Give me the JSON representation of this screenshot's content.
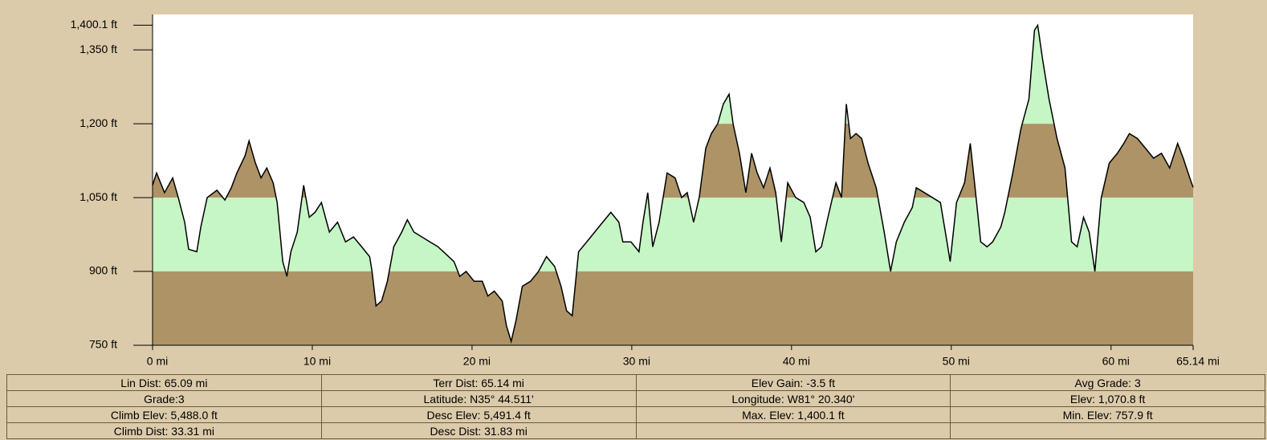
{
  "chart_data": {
    "type": "area",
    "x": [
      0,
      0.25,
      0.75,
      1.26,
      1.61,
      2.01,
      2.26,
      2.77,
      3.02,
      3.42,
      4.03,
      4.53,
      4.93,
      5.28,
      5.79,
      6.04,
      6.44,
      6.79,
      7.15,
      7.55,
      7.8,
      8.15,
      8.41,
      8.66,
      9.06,
      9.46,
      9.81,
      10.17,
      10.57,
      11.07,
      11.58,
      12.08,
      12.58,
      13.09,
      13.59,
      13.74,
      13.99,
      14.34,
      14.7,
      15.1,
      15.6,
      15.95,
      16.36,
      16.86,
      17.36,
      17.87,
      18.37,
      18.87,
      19.23,
      19.63,
      20.13,
      20.64,
      20.99,
      21.39,
      21.89,
      22.15,
      22.45,
      22.75,
      23.15,
      23.66,
      24.16,
      24.66,
      25.17,
      25.57,
      25.92,
      26.27,
      26.67,
      27.18,
      27.68,
      28.18,
      28.69,
      29.19,
      29.44,
      29.95,
      30.45,
      30.7,
      31.0,
      31.31,
      31.71,
      32.21,
      32.71,
      33.12,
      33.47,
      33.87,
      34.22,
      34.63,
      34.98,
      35.38,
      35.73,
      36.09,
      36.34,
      36.74,
      37.14,
      37.5,
      37.85,
      38.25,
      38.65,
      39.01,
      39.36,
      39.76,
      40.26,
      40.77,
      41.17,
      41.52,
      41.87,
      42.28,
      42.78,
      43.13,
      43.43,
      43.69,
      44.04,
      44.39,
      44.79,
      45.3,
      45.8,
      46.2,
      46.56,
      47.06,
      47.56,
      47.81,
      48.32,
      48.82,
      49.32,
      49.73,
      49.93,
      50.33,
      50.83,
      51.19,
      51.49,
      51.84,
      52.24,
      52.59,
      53.1,
      53.35,
      53.85,
      54.36,
      54.86,
      55.21,
      55.41,
      55.72,
      56.12,
      56.62,
      57.12,
      57.53,
      57.88,
      58.28,
      58.63,
      58.99,
      59.39,
      59.89,
      60.4,
      60.8,
      61.15,
      61.65,
      62.16,
      62.66,
      63.16,
      63.67,
      64.17,
      64.52,
      64.93,
      65.14
    ],
    "values": [
      1075,
      1100,
      1060,
      1090,
      1050,
      1000,
      945,
      940,
      990,
      1050,
      1065,
      1045,
      1070,
      1100,
      1135,
      1165,
      1120,
      1090,
      1110,
      1080,
      1040,
      920,
      890,
      940,
      980,
      1075,
      1010,
      1020,
      1040,
      980,
      1000,
      960,
      970,
      950,
      930,
      900,
      830,
      840,
      880,
      950,
      980,
      1005,
      980,
      970,
      960,
      950,
      935,
      920,
      890,
      900,
      880,
      880,
      850,
      860,
      840,
      790,
      757.9,
      800,
      870,
      880,
      900,
      930,
      910,
      870,
      820,
      810,
      940,
      960,
      980,
      1000,
      1020,
      1000,
      960,
      960,
      940,
      1000,
      1060,
      950,
      1000,
      1100,
      1090,
      1050,
      1060,
      1000,
      1050,
      1150,
      1180,
      1200,
      1240,
      1260,
      1200,
      1140,
      1060,
      1140,
      1100,
      1070,
      1110,
      1060,
      960,
      1080,
      1050,
      1040,
      1010,
      940,
      950,
      1010,
      1080,
      1050,
      1240,
      1170,
      1180,
      1170,
      1120,
      1070,
      980,
      900,
      960,
      1000,
      1030,
      1070,
      1060,
      1050,
      1040,
      960,
      920,
      1040,
      1080,
      1160,
      1070,
      960,
      950,
      960,
      990,
      1020,
      1100,
      1190,
      1250,
      1390,
      1400.1,
      1330,
      1250,
      1170,
      1110,
      960,
      950,
      1010,
      980,
      900,
      1050,
      1120,
      1140,
      1160,
      1180,
      1170,
      1150,
      1130,
      1140,
      1110,
      1160,
      1130,
      1090,
      1070.8
    ],
    "color": "#000000",
    "bands": [
      {
        "from": 750,
        "to": 900,
        "color": "#ad9366"
      },
      {
        "from": 900,
        "to": 1050,
        "color": "#c6f5c6"
      },
      {
        "from": 1050,
        "to": 1200,
        "color": "#ad9366"
      },
      {
        "from": 1200,
        "to": 1422,
        "color": "#c6f5c6"
      }
    ],
    "xlim": [
      0,
      65.14
    ],
    "ylim": [
      750,
      1422
    ],
    "xticks": [
      {
        "value": 0,
        "label": "0 mi"
      },
      {
        "value": 10,
        "label": "10 mi"
      },
      {
        "value": 20,
        "label": "20 mi"
      },
      {
        "value": 30,
        "label": "30 mi"
      },
      {
        "value": 40,
        "label": "40 mi"
      },
      {
        "value": 50,
        "label": "50 mi"
      },
      {
        "value": 60,
        "label": "60 mi"
      },
      {
        "value": 65.14,
        "label": "65.14 mi"
      }
    ],
    "yticks": [
      {
        "value": 750,
        "label": "750 ft"
      },
      {
        "value": 900,
        "label": "900 ft"
      },
      {
        "value": 1050,
        "label": "1,050 ft"
      },
      {
        "value": 1200,
        "label": "1,200 ft"
      },
      {
        "value": 1350,
        "label": "1,350 ft"
      },
      {
        "value": 1400.1,
        "label": "1,400.1 ft"
      }
    ]
  },
  "stats_table": {
    "rows": [
      [
        "Lin Dist: 65.09 mi",
        "Terr Dist: 65.14 mi",
        "Elev Gain: -3.5 ft",
        "Avg Grade: 3"
      ],
      [
        "Grade:3",
        "Latitude: N35° 44.511'",
        "Longitude: W81° 20.340'",
        "Elev: 1,070.8 ft"
      ],
      [
        "Climb Elev: 5,488.0 ft",
        "Desc Elev: 5,491.4 ft",
        "Max. Elev: 1,400.1 ft",
        "Min. Elev: 757.9 ft"
      ],
      [
        "Climb Dist: 33.31 mi",
        "Desc Dist: 31.83 mi"
      ]
    ]
  }
}
